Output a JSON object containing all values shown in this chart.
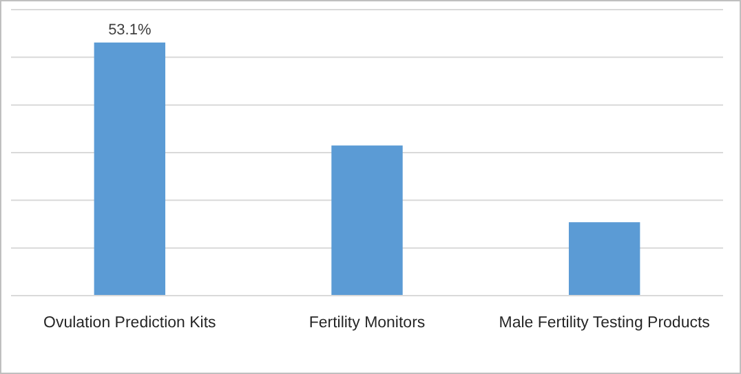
{
  "chart_data": {
    "type": "bar",
    "categories": [
      "Ovulation Prediction Kits",
      "Fertility Monitors",
      "Male Fertility Testing Products"
    ],
    "values": [
      53.1,
      31.5,
      15.4
    ],
    "color": "#5b9bd5",
    "value_labels": [
      "53.1%",
      null,
      null
    ],
    "ylim": [
      0,
      60
    ],
    "yticks": [
      {
        "value": 0,
        "label": null
      },
      {
        "value": 10,
        "label": null
      },
      {
        "value": 20,
        "label": null
      },
      {
        "value": 30,
        "label": null
      },
      {
        "value": 40,
        "label": null
      },
      {
        "value": 50,
        "label": null
      },
      {
        "value": 60,
        "label": null
      }
    ],
    "grid": "y",
    "tick_labels": "x"
  }
}
